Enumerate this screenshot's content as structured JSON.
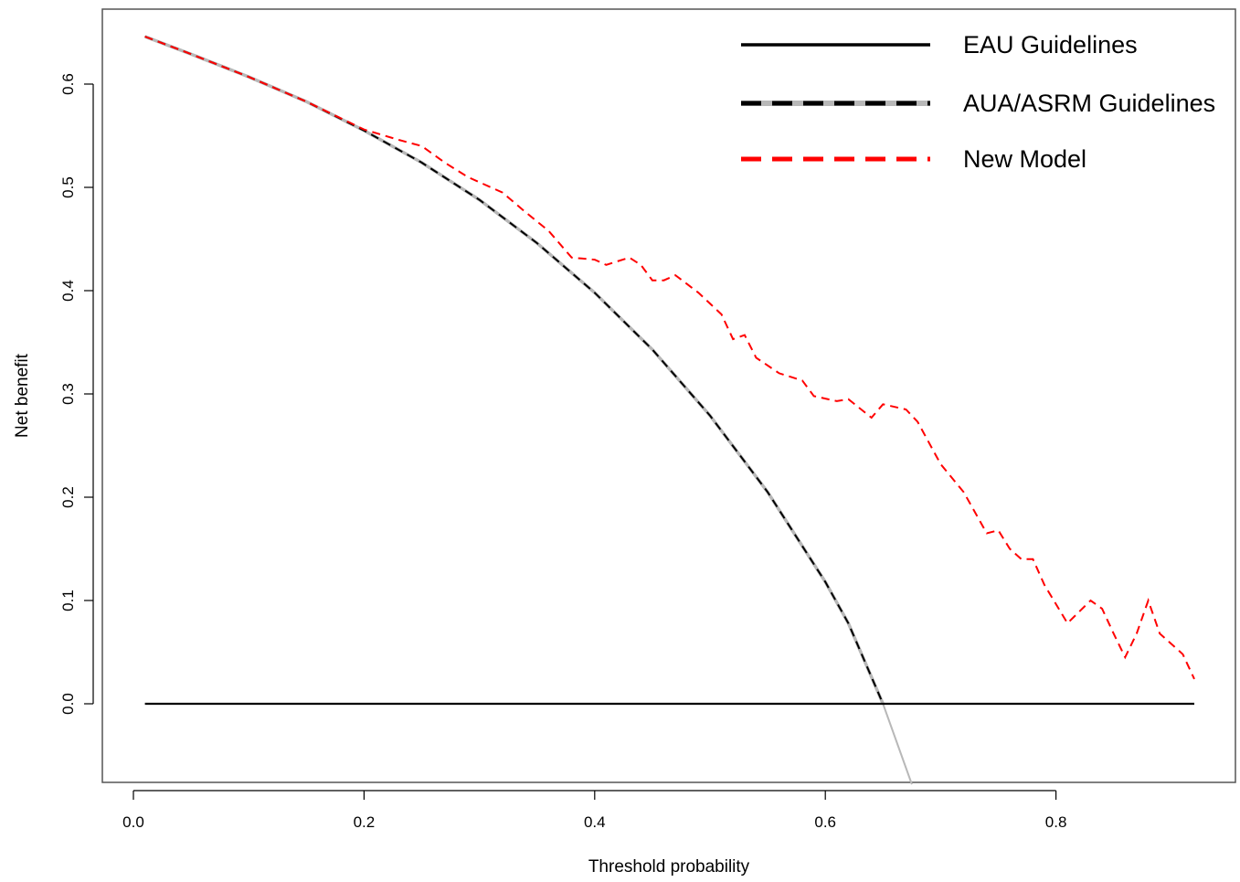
{
  "chart_data": {
    "type": "line",
    "title": "",
    "xlabel": "Threshold probability",
    "ylabel": "Net benefit",
    "xlim": [
      0.0,
      0.92
    ],
    "ylim": [
      -0.078,
      0.672
    ],
    "x_ticks": [
      "0.0",
      "0.2",
      "0.4",
      "0.6",
      "0.8"
    ],
    "y_ticks": [
      "0.0",
      "0.1",
      "0.2",
      "0.3",
      "0.4",
      "0.5",
      "0.6"
    ],
    "grid": false,
    "legend_position": "top-right",
    "series": [
      {
        "name": "EAU Guidelines",
        "color": "#000000",
        "style": "solid",
        "x": [
          0.01,
          0.92
        ],
        "y": [
          0.0,
          0.0
        ]
      },
      {
        "name": "AUA/ASRM Guidelines",
        "color": "#000000",
        "underlay_color": "#b8b8b8",
        "style": "dashed",
        "x": [
          0.01,
          0.05,
          0.1,
          0.15,
          0.2,
          0.25,
          0.3,
          0.35,
          0.4,
          0.45,
          0.5,
          0.55,
          0.6,
          0.62,
          0.65,
          0.68,
          0.72,
          0.76,
          0.8,
          0.84,
          0.88,
          0.92
        ],
        "y": [
          0.646,
          0.629,
          0.607,
          0.583,
          0.555,
          0.524,
          0.488,
          0.446,
          0.398,
          0.343,
          0.279,
          0.205,
          0.118,
          0.078,
          0.0,
          0.0,
          0.0,
          0.0,
          0.0,
          0.0,
          0.0,
          0.0
        ],
        "underlay_x": [
          0.65,
          0.675
        ],
        "underlay_y": [
          0.0,
          -0.078
        ]
      },
      {
        "name": "New Model",
        "color": "#ff0000",
        "style": "dashed",
        "x": [
          0.01,
          0.05,
          0.1,
          0.15,
          0.2,
          0.23,
          0.25,
          0.27,
          0.29,
          0.32,
          0.34,
          0.36,
          0.38,
          0.4,
          0.41,
          0.43,
          0.44,
          0.45,
          0.46,
          0.47,
          0.49,
          0.51,
          0.52,
          0.53,
          0.54,
          0.56,
          0.58,
          0.59,
          0.61,
          0.62,
          0.64,
          0.65,
          0.67,
          0.68,
          0.7,
          0.72,
          0.74,
          0.75,
          0.76,
          0.77,
          0.78,
          0.79,
          0.81,
          0.83,
          0.84,
          0.85,
          0.86,
          0.87,
          0.88,
          0.89,
          0.91,
          0.92
        ],
        "y": [
          0.646,
          0.629,
          0.607,
          0.583,
          0.556,
          0.546,
          0.54,
          0.524,
          0.51,
          0.495,
          0.476,
          0.458,
          0.432,
          0.43,
          0.425,
          0.432,
          0.425,
          0.41,
          0.41,
          0.415,
          0.398,
          0.377,
          0.353,
          0.357,
          0.335,
          0.32,
          0.313,
          0.298,
          0.293,
          0.295,
          0.277,
          0.29,
          0.285,
          0.273,
          0.232,
          0.205,
          0.165,
          0.168,
          0.15,
          0.14,
          0.14,
          0.115,
          0.078,
          0.1,
          0.092,
          0.068,
          0.045,
          0.068,
          0.1,
          0.068,
          0.048,
          0.024
        ]
      }
    ]
  }
}
